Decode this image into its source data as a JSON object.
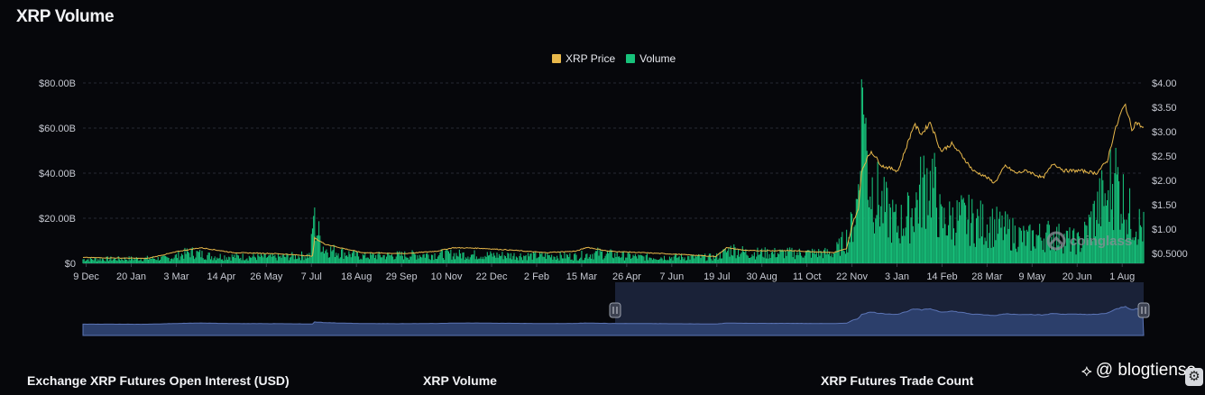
{
  "title": "XRP Volume",
  "colors": {
    "background": "#06070b",
    "price": "#e8b84b",
    "volume": "#17c27b",
    "navigator_fill": "#2c3f6b",
    "navigator_line": "#5b74b5",
    "navigator_selected": "#1a2238",
    "grid": "#262a33"
  },
  "legend": [
    {
      "label": "XRP Price",
      "color": "#e8b84b"
    },
    {
      "label": "Volume",
      "color": "#17c27b"
    }
  ],
  "watermark": "coinglass",
  "footer_tabs": [
    "Exchange XRP Futures Open Interest (USD)",
    "XRP Volume",
    "XRP Futures Trade Count"
  ],
  "brand_overlay": "@ blogtienso",
  "settings_icon": "gear-icon",
  "chart_data": {
    "type": "bar",
    "title": "XRP Volume",
    "left_axis": {
      "series": "Volume",
      "ticks": [
        "$0",
        "$20.00B",
        "$40.00B",
        "$60.00B",
        "$80.00B"
      ],
      "range": [
        0,
        80
      ]
    },
    "right_axis": {
      "series": "XRP Price",
      "ticks": [
        "$0.5000",
        "$1.00",
        "$1.50",
        "$2.00",
        "$2.50",
        "$3.00",
        "$3.50",
        "$4.00"
      ],
      "range": [
        0.3,
        4.0
      ]
    },
    "x_tick_labels": [
      "9 Dec",
      "20 Jan",
      "3 Mar",
      "14 Apr",
      "26 May",
      "7 Jul",
      "18 Aug",
      "29 Sep",
      "10 Nov",
      "22 Dec",
      "2 Feb",
      "15 Mar",
      "26 Apr",
      "7 Jun",
      "19 Jul",
      "30 Aug",
      "11 Oct",
      "22 Nov",
      "3 Jan",
      "14 Feb",
      "28 Mar",
      "9 May",
      "20 Jun",
      "1 Aug"
    ],
    "x_tick_index": [
      3,
      45,
      87,
      129,
      171,
      213,
      255,
      297,
      339,
      381,
      423,
      465,
      507,
      549,
      591,
      633,
      675,
      717,
      759,
      801,
      843,
      885,
      927,
      969
    ],
    "days": 990,
    "price_keypoints": [
      [
        0,
        0.42
      ],
      [
        60,
        0.4
      ],
      [
        90,
        0.55
      ],
      [
        110,
        0.62
      ],
      [
        140,
        0.52
      ],
      [
        180,
        0.5
      ],
      [
        214,
        0.45
      ],
      [
        216,
        0.82
      ],
      [
        225,
        0.7
      ],
      [
        240,
        0.62
      ],
      [
        260,
        0.52
      ],
      [
        300,
        0.5
      ],
      [
        330,
        0.55
      ],
      [
        345,
        0.62
      ],
      [
        370,
        0.61
      ],
      [
        400,
        0.57
      ],
      [
        430,
        0.52
      ],
      [
        460,
        0.55
      ],
      [
        470,
        0.63
      ],
      [
        490,
        0.55
      ],
      [
        520,
        0.52
      ],
      [
        560,
        0.48
      ],
      [
        590,
        0.44
      ],
      [
        600,
        0.62
      ],
      [
        620,
        0.56
      ],
      [
        660,
        0.56
      ],
      [
        700,
        0.52
      ],
      [
        712,
        0.6
      ],
      [
        718,
        1.15
      ],
      [
        723,
        1.4
      ],
      [
        726,
        2.2
      ],
      [
        730,
        2.4
      ],
      [
        735,
        2.6
      ],
      [
        745,
        2.3
      ],
      [
        760,
        2.2
      ],
      [
        775,
        3.15
      ],
      [
        782,
        2.95
      ],
      [
        790,
        3.2
      ],
      [
        800,
        2.6
      ],
      [
        810,
        2.75
      ],
      [
        820,
        2.5
      ],
      [
        830,
        2.2
      ],
      [
        840,
        2.1
      ],
      [
        850,
        1.95
      ],
      [
        860,
        2.3
      ],
      [
        870,
        2.15
      ],
      [
        880,
        2.2
      ],
      [
        895,
        2.05
      ],
      [
        905,
        2.35
      ],
      [
        915,
        2.2
      ],
      [
        930,
        2.2
      ],
      [
        945,
        2.15
      ],
      [
        955,
        2.4
      ],
      [
        962,
        3.0
      ],
      [
        968,
        3.4
      ],
      [
        972,
        3.55
      ],
      [
        978,
        3.05
      ],
      [
        982,
        3.2
      ],
      [
        990,
        3.05
      ]
    ],
    "volume_keypoints": [
      [
        0,
        2.0
      ],
      [
        80,
        2.5
      ],
      [
        100,
        5.5
      ],
      [
        120,
        3.5
      ],
      [
        180,
        3.0
      ],
      [
        212,
        4.0
      ],
      [
        215,
        21.0
      ],
      [
        225,
        7.0
      ],
      [
        260,
        3.5
      ],
      [
        340,
        4.5
      ],
      [
        380,
        4.0
      ],
      [
        460,
        3.5
      ],
      [
        480,
        5.0
      ],
      [
        520,
        3.0
      ],
      [
        590,
        3.0
      ],
      [
        605,
        7.0
      ],
      [
        620,
        5.0
      ],
      [
        700,
        5.0
      ],
      [
        715,
        14.0
      ],
      [
        722,
        30.0
      ],
      [
        727,
        78.0
      ],
      [
        733,
        40.0
      ],
      [
        745,
        28.0
      ],
      [
        760,
        18.0
      ],
      [
        775,
        27.0
      ],
      [
        790,
        45.0
      ],
      [
        800,
        20.0
      ],
      [
        820,
        22.0
      ],
      [
        850,
        18.0
      ],
      [
        880,
        12.0
      ],
      [
        900,
        14.0
      ],
      [
        930,
        10.0
      ],
      [
        950,
        30.0
      ],
      [
        962,
        42.0
      ],
      [
        975,
        24.0
      ],
      [
        990,
        16.0
      ]
    ],
    "volume_spikes": [
      [
        727,
        78.0
      ],
      [
        728,
        66.0
      ],
      [
        725,
        41.0
      ],
      [
        790,
        41.0
      ],
      [
        770,
        30.0
      ],
      [
        962,
        40.0
      ],
      [
        955,
        28.0
      ],
      [
        215,
        21.0
      ]
    ]
  }
}
